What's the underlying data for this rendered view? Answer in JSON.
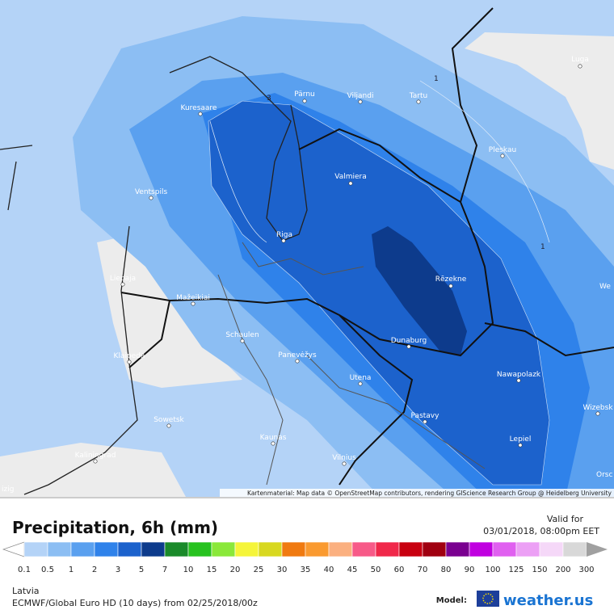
{
  "map": {
    "cities": [
      "Pärnu",
      "Viljandi",
      "Tartu",
      "Kuresaare",
      "Luga",
      "Pleskau",
      "Valmiera",
      "Ventspils",
      "Riga",
      "Liepaja",
      "Rēzekne",
      "Mažeikiai",
      "Schaulen",
      "Klaipeda",
      "Panevėžys",
      "Dunaburg",
      "Utena",
      "Nawapolazk",
      "Pastavy",
      "Wizebsk",
      "Sowetsk",
      "Lepiel",
      "Kaunas",
      "Kaliningrad",
      "Vilnius",
      "We",
      "Orsc",
      "izig"
    ],
    "contour_labels": [
      "1",
      "1",
      "3"
    ],
    "attribution": "Kartenmaterial: Map data © OpenStreetMap contributors, rendering GIScience Research Group @ Heidelberg University"
  },
  "header": {
    "title": "Precipitation, 6h (mm)",
    "valid_label": "Valid for",
    "valid_time": "03/01/2018, 08:00pm EET"
  },
  "legend": {
    "labels": [
      "0.1",
      "0.5",
      "1",
      "2",
      "3",
      "5",
      "7",
      "10",
      "15",
      "20",
      "25",
      "30",
      "35",
      "40",
      "45",
      "50",
      "60",
      "70",
      "80",
      "90",
      "100",
      "125",
      "150",
      "200",
      "300"
    ],
    "colors": [
      "#b4d3f7",
      "#8cbef3",
      "#5aa0ef",
      "#2f82ea",
      "#1c62cc",
      "#0d3b8c",
      "#1a8a2a",
      "#27c21f",
      "#8ae83a",
      "#f5f53a",
      "#d8d820",
      "#f07a10",
      "#fa9a30",
      "#fbb080",
      "#f75a88",
      "#f0284a",
      "#c80010",
      "#a00010",
      "#7a0090",
      "#c000e0",
      "#e060f0",
      "#eca0f5",
      "#f5d8f8",
      "#d8d8d8"
    ],
    "under_color": "#ffffff",
    "over_color": "#a0a0a0"
  },
  "footer": {
    "region": "Latvia",
    "model_line": "ECMWF/Global Euro HD (10 days) from 02/25/2018/00z",
    "model_label": "Model:",
    "brand": "weather.us"
  }
}
